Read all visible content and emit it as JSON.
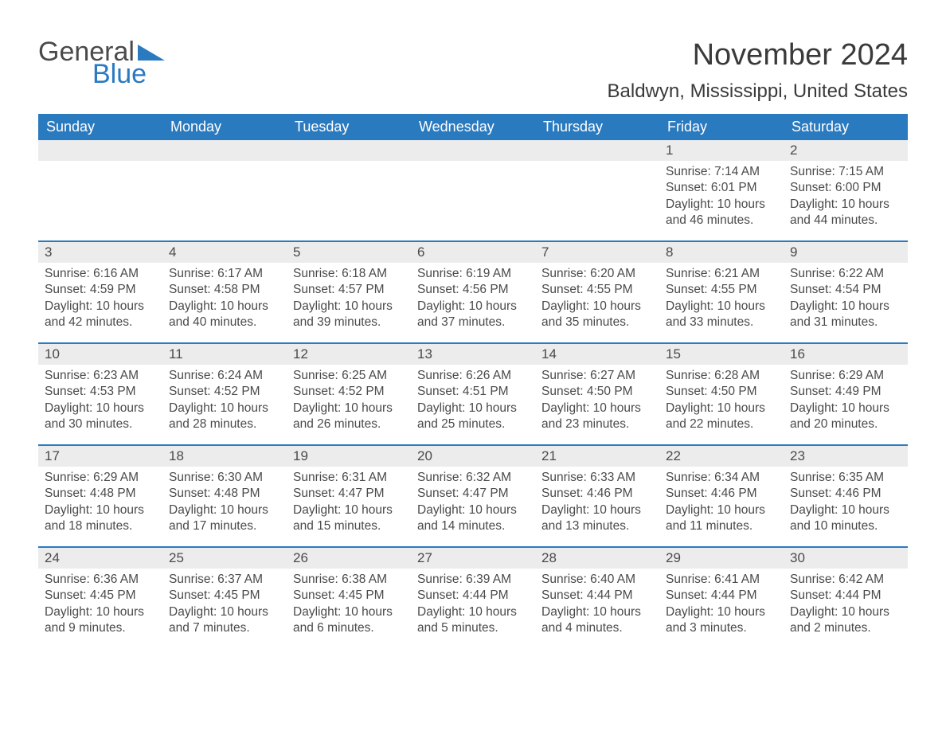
{
  "logo": {
    "text1": "General",
    "text2": "Blue",
    "triangle_color": "#2a7ac0"
  },
  "title": "November 2024",
  "location": "Baldwyn, Mississippi, United States",
  "colors": {
    "header_bg": "#2a7ac0",
    "header_text": "#ffffff",
    "daynum_bg": "#ececec",
    "week_border": "#2a7ac0",
    "body_text": "#4a4a4a"
  },
  "weekdays": [
    "Sunday",
    "Monday",
    "Tuesday",
    "Wednesday",
    "Thursday",
    "Friday",
    "Saturday"
  ],
  "weeks": [
    [
      {
        "day": "",
        "sunrise": "",
        "sunset": "",
        "daylight": ""
      },
      {
        "day": "",
        "sunrise": "",
        "sunset": "",
        "daylight": ""
      },
      {
        "day": "",
        "sunrise": "",
        "sunset": "",
        "daylight": ""
      },
      {
        "day": "",
        "sunrise": "",
        "sunset": "",
        "daylight": ""
      },
      {
        "day": "",
        "sunrise": "",
        "sunset": "",
        "daylight": ""
      },
      {
        "day": "1",
        "sunrise": "Sunrise: 7:14 AM",
        "sunset": "Sunset: 6:01 PM",
        "daylight": "Daylight: 10 hours and 46 minutes."
      },
      {
        "day": "2",
        "sunrise": "Sunrise: 7:15 AM",
        "sunset": "Sunset: 6:00 PM",
        "daylight": "Daylight: 10 hours and 44 minutes."
      }
    ],
    [
      {
        "day": "3",
        "sunrise": "Sunrise: 6:16 AM",
        "sunset": "Sunset: 4:59 PM",
        "daylight": "Daylight: 10 hours and 42 minutes."
      },
      {
        "day": "4",
        "sunrise": "Sunrise: 6:17 AM",
        "sunset": "Sunset: 4:58 PM",
        "daylight": "Daylight: 10 hours and 40 minutes."
      },
      {
        "day": "5",
        "sunrise": "Sunrise: 6:18 AM",
        "sunset": "Sunset: 4:57 PM",
        "daylight": "Daylight: 10 hours and 39 minutes."
      },
      {
        "day": "6",
        "sunrise": "Sunrise: 6:19 AM",
        "sunset": "Sunset: 4:56 PM",
        "daylight": "Daylight: 10 hours and 37 minutes."
      },
      {
        "day": "7",
        "sunrise": "Sunrise: 6:20 AM",
        "sunset": "Sunset: 4:55 PM",
        "daylight": "Daylight: 10 hours and 35 minutes."
      },
      {
        "day": "8",
        "sunrise": "Sunrise: 6:21 AM",
        "sunset": "Sunset: 4:55 PM",
        "daylight": "Daylight: 10 hours and 33 minutes."
      },
      {
        "day": "9",
        "sunrise": "Sunrise: 6:22 AM",
        "sunset": "Sunset: 4:54 PM",
        "daylight": "Daylight: 10 hours and 31 minutes."
      }
    ],
    [
      {
        "day": "10",
        "sunrise": "Sunrise: 6:23 AM",
        "sunset": "Sunset: 4:53 PM",
        "daylight": "Daylight: 10 hours and 30 minutes."
      },
      {
        "day": "11",
        "sunrise": "Sunrise: 6:24 AM",
        "sunset": "Sunset: 4:52 PM",
        "daylight": "Daylight: 10 hours and 28 minutes."
      },
      {
        "day": "12",
        "sunrise": "Sunrise: 6:25 AM",
        "sunset": "Sunset: 4:52 PM",
        "daylight": "Daylight: 10 hours and 26 minutes."
      },
      {
        "day": "13",
        "sunrise": "Sunrise: 6:26 AM",
        "sunset": "Sunset: 4:51 PM",
        "daylight": "Daylight: 10 hours and 25 minutes."
      },
      {
        "day": "14",
        "sunrise": "Sunrise: 6:27 AM",
        "sunset": "Sunset: 4:50 PM",
        "daylight": "Daylight: 10 hours and 23 minutes."
      },
      {
        "day": "15",
        "sunrise": "Sunrise: 6:28 AM",
        "sunset": "Sunset: 4:50 PM",
        "daylight": "Daylight: 10 hours and 22 minutes."
      },
      {
        "day": "16",
        "sunrise": "Sunrise: 6:29 AM",
        "sunset": "Sunset: 4:49 PM",
        "daylight": "Daylight: 10 hours and 20 minutes."
      }
    ],
    [
      {
        "day": "17",
        "sunrise": "Sunrise: 6:29 AM",
        "sunset": "Sunset: 4:48 PM",
        "daylight": "Daylight: 10 hours and 18 minutes."
      },
      {
        "day": "18",
        "sunrise": "Sunrise: 6:30 AM",
        "sunset": "Sunset: 4:48 PM",
        "daylight": "Daylight: 10 hours and 17 minutes."
      },
      {
        "day": "19",
        "sunrise": "Sunrise: 6:31 AM",
        "sunset": "Sunset: 4:47 PM",
        "daylight": "Daylight: 10 hours and 15 minutes."
      },
      {
        "day": "20",
        "sunrise": "Sunrise: 6:32 AM",
        "sunset": "Sunset: 4:47 PM",
        "daylight": "Daylight: 10 hours and 14 minutes."
      },
      {
        "day": "21",
        "sunrise": "Sunrise: 6:33 AM",
        "sunset": "Sunset: 4:46 PM",
        "daylight": "Daylight: 10 hours and 13 minutes."
      },
      {
        "day": "22",
        "sunrise": "Sunrise: 6:34 AM",
        "sunset": "Sunset: 4:46 PM",
        "daylight": "Daylight: 10 hours and 11 minutes."
      },
      {
        "day": "23",
        "sunrise": "Sunrise: 6:35 AM",
        "sunset": "Sunset: 4:46 PM",
        "daylight": "Daylight: 10 hours and 10 minutes."
      }
    ],
    [
      {
        "day": "24",
        "sunrise": "Sunrise: 6:36 AM",
        "sunset": "Sunset: 4:45 PM",
        "daylight": "Daylight: 10 hours and 9 minutes."
      },
      {
        "day": "25",
        "sunrise": "Sunrise: 6:37 AM",
        "sunset": "Sunset: 4:45 PM",
        "daylight": "Daylight: 10 hours and 7 minutes."
      },
      {
        "day": "26",
        "sunrise": "Sunrise: 6:38 AM",
        "sunset": "Sunset: 4:45 PM",
        "daylight": "Daylight: 10 hours and 6 minutes."
      },
      {
        "day": "27",
        "sunrise": "Sunrise: 6:39 AM",
        "sunset": "Sunset: 4:44 PM",
        "daylight": "Daylight: 10 hours and 5 minutes."
      },
      {
        "day": "28",
        "sunrise": "Sunrise: 6:40 AM",
        "sunset": "Sunset: 4:44 PM",
        "daylight": "Daylight: 10 hours and 4 minutes."
      },
      {
        "day": "29",
        "sunrise": "Sunrise: 6:41 AM",
        "sunset": "Sunset: 4:44 PM",
        "daylight": "Daylight: 10 hours and 3 minutes."
      },
      {
        "day": "30",
        "sunrise": "Sunrise: 6:42 AM",
        "sunset": "Sunset: 4:44 PM",
        "daylight": "Daylight: 10 hours and 2 minutes."
      }
    ]
  ]
}
